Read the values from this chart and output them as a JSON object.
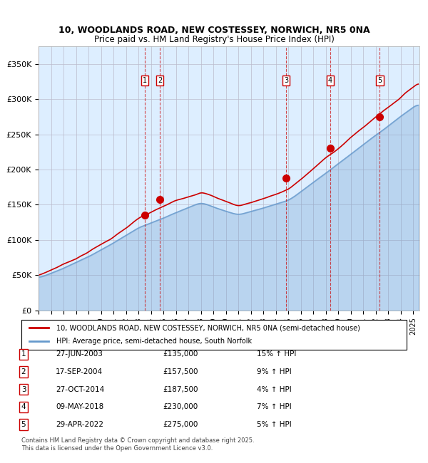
{
  "title_line1": "10, WOODLANDS ROAD, NEW COSTESSEY, NORWICH, NR5 0NA",
  "title_line2": "Price paid vs. HM Land Registry's House Price Index (HPI)",
  "ylabel_ticks": [
    "£0",
    "£50K",
    "£100K",
    "£150K",
    "£200K",
    "£250K",
    "£300K",
    "£350K"
  ],
  "ytick_vals": [
    0,
    50000,
    100000,
    150000,
    200000,
    250000,
    300000,
    350000
  ],
  "ylim": [
    0,
    375000
  ],
  "xlim_start": 1995.0,
  "xlim_end": 2025.5,
  "sale_dates": [
    2003.49,
    2004.72,
    2014.83,
    2018.36,
    2022.33
  ],
  "sale_prices": [
    135000,
    157500,
    187500,
    230000,
    275000
  ],
  "sale_labels": [
    "1",
    "2",
    "3",
    "4",
    "5"
  ],
  "sale_table": [
    {
      "num": "1",
      "date": "27-JUN-2003",
      "price": "£135,000",
      "pct": "15% ↑ HPI"
    },
    {
      "num": "2",
      "date": "17-SEP-2004",
      "price": "£157,500",
      "pct": "9% ↑ HPI"
    },
    {
      "num": "3",
      "date": "27-OCT-2014",
      "price": "£187,500",
      "pct": "4% ↑ HPI"
    },
    {
      "num": "4",
      "date": "09-MAY-2018",
      "price": "£230,000",
      "pct": "7% ↑ HPI"
    },
    {
      "num": "5",
      "date": "29-APR-2022",
      "price": "£275,000",
      "pct": "5% ↑ HPI"
    }
  ],
  "legend_line1": "10, WOODLANDS ROAD, NEW COSTESSEY, NORWICH, NR5 0NA (semi-detached house)",
  "legend_line2": "HPI: Average price, semi-detached house, South Norfolk",
  "footer": "Contains HM Land Registry data © Crown copyright and database right 2025.\nThis data is licensed under the Open Government Licence v3.0.",
  "red_color": "#cc0000",
  "blue_color": "#6699cc",
  "bg_color": "#ddeeff",
  "grid_color": "#bbbbcc",
  "dashed_color": "#cc0000"
}
